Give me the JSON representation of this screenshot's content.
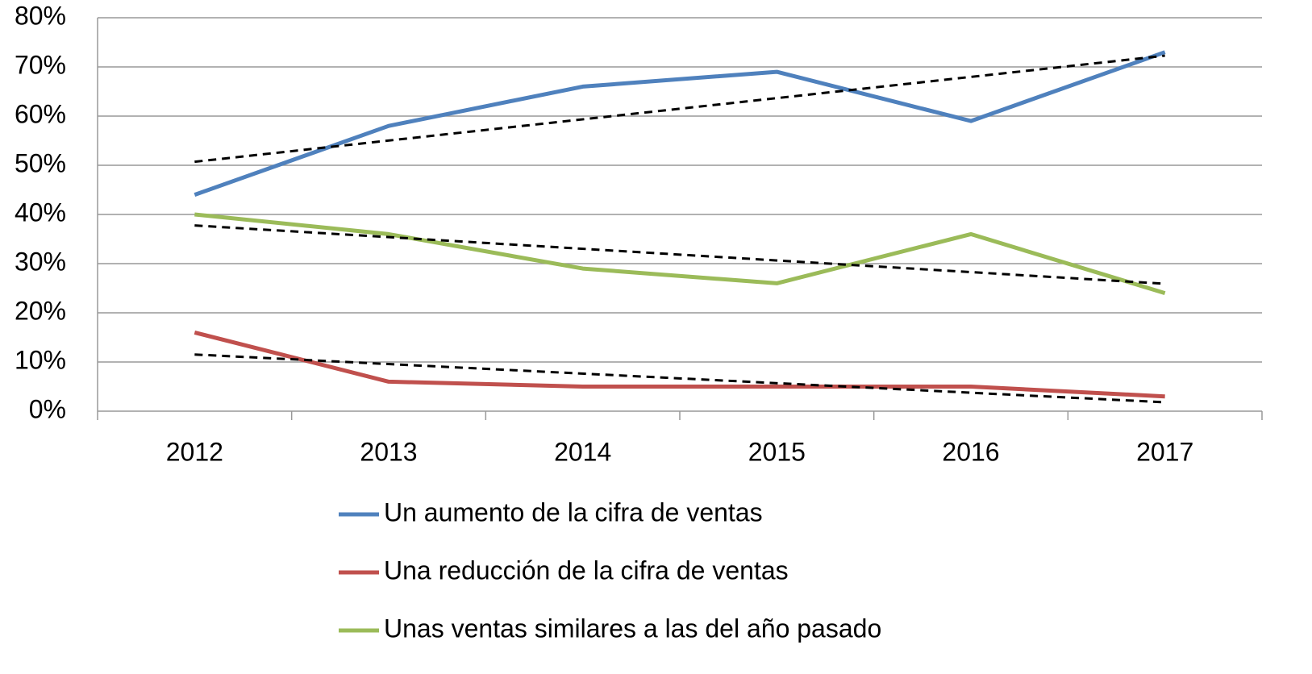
{
  "chart_data": {
    "type": "line",
    "categories": [
      "2012",
      "2013",
      "2014",
      "2015",
      "2016",
      "2017"
    ],
    "series": [
      {
        "name": "Un aumento de la cifra de ventas",
        "color": "#4f81bd",
        "values": [
          44,
          58,
          66,
          69,
          59,
          73
        ]
      },
      {
        "name": "Una reducción de la cifra de ventas",
        "color": "#c0504d",
        "values": [
          16,
          6,
          5,
          5,
          5,
          3
        ]
      },
      {
        "name": "Unas ventas similares a las del año pasado",
        "color": "#9bbb59",
        "values": [
          40,
          36,
          29,
          26,
          36,
          24
        ]
      }
    ],
    "ylim": [
      0,
      80
    ],
    "yticks": [
      {
        "value": 0,
        "label": "0%"
      },
      {
        "value": 10,
        "label": "10%"
      },
      {
        "value": 20,
        "label": "20%"
      },
      {
        "value": 30,
        "label": "30%"
      },
      {
        "value": 40,
        "label": "40%"
      },
      {
        "value": 50,
        "label": "50%"
      },
      {
        "value": 60,
        "label": "60%"
      },
      {
        "value": 70,
        "label": "70%"
      },
      {
        "value": 80,
        "label": "80%"
      }
    ],
    "grid": true,
    "trendline": true,
    "legend": "bottom"
  }
}
